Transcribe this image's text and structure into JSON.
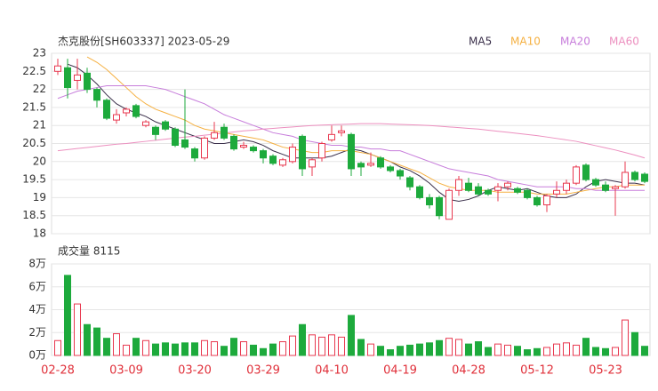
{
  "chart_data": [
    {
      "type": "candlestick",
      "title": "杰克股份[SH603337] 2023-05-29",
      "up_color": "#e8384f",
      "down_color": "#1daa3c",
      "ylim": [
        18,
        23
      ],
      "yticks": [
        18,
        18.5,
        19,
        19.5,
        20,
        20.5,
        21,
        21.5,
        22,
        22.5,
        23
      ],
      "grid": true,
      "open": [
        22.5,
        22.6,
        22.25,
        22.45,
        22.0,
        21.7,
        21.15,
        21.35,
        21.55,
        21.0,
        20.95,
        21.1,
        20.9,
        20.6,
        20.35,
        20.1,
        20.65,
        20.95,
        20.7,
        20.4,
        20.4,
        20.3,
        20.15,
        19.9,
        20.0,
        20.7,
        19.85,
        20.1,
        20.6,
        20.8,
        20.75,
        19.95,
        19.9,
        20.1,
        19.85,
        19.75,
        19.55,
        19.3,
        19.0,
        19.0,
        18.4,
        19.2,
        19.4,
        19.3,
        19.2,
        19.2,
        19.3,
        19.25,
        19.2,
        19.0,
        18.8,
        19.1,
        19.2,
        19.4,
        19.9,
        19.5,
        19.35,
        19.25,
        19.3,
        19.7,
        19.65
      ],
      "high": [
        22.85,
        22.85,
        22.85,
        22.6,
        22.05,
        21.75,
        21.45,
        21.5,
        21.6,
        21.15,
        21.0,
        21.15,
        20.95,
        22.0,
        20.4,
        20.7,
        21.1,
        21.05,
        20.75,
        20.55,
        20.45,
        20.35,
        20.2,
        20.1,
        20.5,
        20.75,
        20.1,
        20.55,
        21.0,
        21.0,
        20.8,
        20.0,
        20.25,
        20.15,
        19.9,
        19.8,
        19.6,
        19.35,
        19.1,
        19.05,
        19.25,
        19.6,
        19.55,
        19.4,
        19.25,
        19.4,
        19.45,
        19.3,
        19.25,
        19.05,
        19.1,
        19.45,
        19.5,
        19.9,
        19.95,
        19.55,
        19.45,
        19.35,
        20.0,
        19.75,
        19.7
      ],
      "low": [
        22.4,
        21.75,
        22.0,
        21.9,
        21.5,
        21.15,
        21.05,
        21.25,
        21.2,
        20.95,
        20.6,
        20.85,
        20.4,
        20.35,
        20.0,
        20.05,
        20.6,
        20.6,
        20.3,
        20.35,
        20.25,
        19.95,
        19.9,
        19.85,
        19.95,
        19.6,
        19.6,
        20.0,
        20.55,
        20.7,
        19.6,
        19.6,
        19.85,
        19.8,
        19.7,
        19.5,
        19.2,
        18.95,
        18.7,
        18.4,
        18.4,
        19.05,
        19.15,
        19.05,
        19.05,
        18.9,
        19.2,
        19.1,
        18.95,
        18.75,
        18.6,
        19.0,
        19.1,
        19.35,
        19.45,
        19.3,
        19.15,
        18.5,
        19.25,
        19.45,
        19.4
      ],
      "close": [
        22.65,
        22.05,
        22.4,
        22.0,
        21.7,
        21.2,
        21.3,
        21.45,
        21.25,
        21.1,
        20.75,
        20.9,
        20.45,
        20.4,
        20.1,
        20.65,
        20.8,
        20.65,
        20.35,
        20.45,
        20.3,
        20.1,
        19.95,
        20.05,
        20.4,
        19.8,
        20.05,
        20.5,
        20.75,
        20.85,
        19.8,
        19.85,
        19.95,
        19.85,
        19.75,
        19.6,
        19.3,
        19.0,
        18.8,
        18.5,
        19.2,
        19.5,
        19.2,
        19.1,
        19.1,
        19.3,
        19.4,
        19.15,
        19.0,
        18.8,
        19.05,
        19.2,
        19.4,
        19.85,
        19.5,
        19.35,
        19.2,
        19.3,
        19.7,
        19.5,
        19.45
      ],
      "series": [
        {
          "name": "MA5",
          "color": "#3a2f4a",
          "values": [
            null,
            22.7,
            22.6,
            22.4,
            22.15,
            21.85,
            21.6,
            21.45,
            21.35,
            21.25,
            21.1,
            21.0,
            20.9,
            20.8,
            20.7,
            20.6,
            20.5,
            20.5,
            20.55,
            20.6,
            20.55,
            20.45,
            20.3,
            20.2,
            20.1,
            20.1,
            20.1,
            20.1,
            20.15,
            20.25,
            20.35,
            20.3,
            20.2,
            20.1,
            20.0,
            19.85,
            19.75,
            19.6,
            19.4,
            19.15,
            18.95,
            18.9,
            18.95,
            19.05,
            19.2,
            19.3,
            19.25,
            19.2,
            19.25,
            19.15,
            19.05,
            19.0,
            19.0,
            19.1,
            19.3,
            19.45,
            19.5,
            19.45,
            19.4,
            19.4,
            19.35
          ]
        },
        {
          "name": "MA10",
          "color": "#f5b041",
          "values": [
            null,
            null,
            null,
            22.9,
            22.75,
            22.55,
            22.3,
            22.05,
            21.8,
            21.6,
            21.45,
            21.35,
            21.25,
            21.15,
            21.0,
            20.9,
            20.85,
            20.8,
            20.75,
            20.7,
            20.65,
            20.6,
            20.5,
            20.4,
            20.35,
            20.3,
            20.25,
            20.25,
            20.3,
            20.3,
            20.3,
            20.25,
            20.2,
            20.1,
            20.0,
            19.9,
            19.8,
            19.7,
            19.55,
            19.4,
            19.3,
            19.25,
            19.2,
            19.2,
            19.2,
            19.15,
            19.15,
            19.15,
            19.15,
            19.1,
            19.1,
            19.1,
            19.1,
            19.15,
            19.2,
            19.25,
            19.3,
            19.3,
            19.35,
            19.35,
            19.35
          ]
        },
        {
          "name": "MA20",
          "color": "#c77ddb",
          "values": [
            21.75,
            21.85,
            21.95,
            22.0,
            22.05,
            22.1,
            22.1,
            22.1,
            22.1,
            22.1,
            22.05,
            22.0,
            21.9,
            21.8,
            21.7,
            21.6,
            21.45,
            21.3,
            21.2,
            21.1,
            21.0,
            20.9,
            20.8,
            20.75,
            20.7,
            20.6,
            20.55,
            20.5,
            20.45,
            20.45,
            20.4,
            20.4,
            20.35,
            20.35,
            20.3,
            20.3,
            20.2,
            20.1,
            20.0,
            19.9,
            19.8,
            19.75,
            19.7,
            19.65,
            19.6,
            19.5,
            19.45,
            19.4,
            19.35,
            19.3,
            19.3,
            19.3,
            19.3,
            19.25,
            19.25,
            19.2,
            19.2,
            19.2,
            19.2,
            19.2,
            19.2
          ]
        },
        {
          "name": "MA60",
          "color": "#ec8fbf",
          "values": [
            20.3,
            20.33,
            20.36,
            20.39,
            20.42,
            20.45,
            20.48,
            20.5,
            20.53,
            20.56,
            20.59,
            20.62,
            20.65,
            20.68,
            20.7,
            20.73,
            20.76,
            20.79,
            20.82,
            20.85,
            20.87,
            20.9,
            20.92,
            20.94,
            20.96,
            20.98,
            21.0,
            21.01,
            21.02,
            21.03,
            21.04,
            21.05,
            21.05,
            21.05,
            21.04,
            21.03,
            21.02,
            21.01,
            21.0,
            20.98,
            20.96,
            20.94,
            20.92,
            20.9,
            20.87,
            20.84,
            20.81,
            20.78,
            20.75,
            20.72,
            20.68,
            20.64,
            20.6,
            20.56,
            20.5,
            20.44,
            20.38,
            20.32,
            20.25,
            20.18,
            20.1
          ]
        }
      ]
    },
    {
      "type": "volume",
      "title": "成交量 8115",
      "categories": [
        "02-28",
        null,
        null,
        null,
        null,
        null,
        null,
        "03-09",
        null,
        null,
        null,
        null,
        null,
        null,
        "03-20",
        null,
        null,
        null,
        null,
        null,
        null,
        "03-29",
        null,
        null,
        null,
        null,
        null,
        null,
        "04-10",
        null,
        null,
        null,
        null,
        null,
        null,
        "04-19",
        null,
        null,
        null,
        null,
        null,
        null,
        "04-28",
        null,
        null,
        null,
        null,
        null,
        null,
        "05-12",
        null,
        null,
        null,
        null,
        null,
        null,
        "05-23",
        null,
        null,
        null,
        null
      ],
      "values": [
        1.3,
        7.0,
        4.5,
        2.7,
        2.4,
        1.5,
        1.9,
        0.9,
        1.5,
        1.3,
        1.0,
        1.1,
        1.0,
        1.1,
        1.1,
        1.3,
        1.2,
        0.8,
        1.5,
        1.2,
        0.9,
        0.6,
        1.0,
        1.2,
        1.7,
        2.7,
        1.8,
        1.6,
        1.8,
        1.6,
        3.5,
        1.4,
        1.0,
        0.8,
        0.5,
        0.8,
        0.9,
        1.0,
        1.1,
        1.3,
        1.5,
        1.4,
        1.0,
        1.2,
        0.7,
        1.0,
        0.9,
        0.8,
        0.5,
        0.6,
        0.7,
        1.0,
        1.1,
        0.9,
        1.5,
        0.7,
        0.6,
        0.7,
        3.1,
        2.0,
        0.8
      ],
      "ylim": [
        0,
        8
      ],
      "yticks": [
        {
          "value": 0,
          "label": "0万"
        },
        {
          "value": 2,
          "label": "2万"
        },
        {
          "value": 4,
          "label": "4万"
        },
        {
          "value": 6,
          "label": "6万"
        },
        {
          "value": 8,
          "label": "8万"
        }
      ],
      "grid": true,
      "label_color": "#e0303a"
    }
  ]
}
